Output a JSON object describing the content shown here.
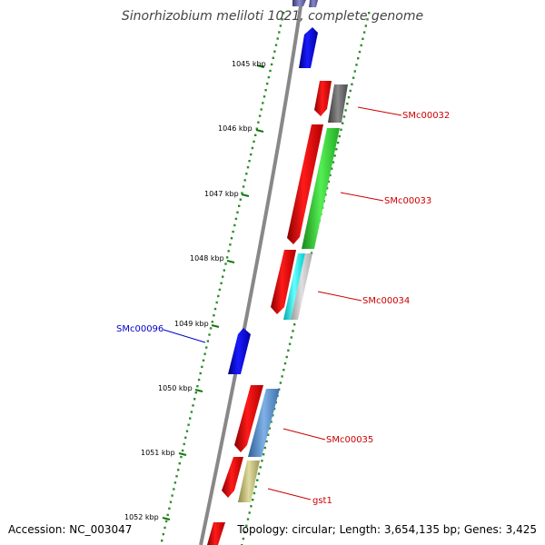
{
  "title": "Sinorhizobium meliloti 1021, complete genome",
  "footer": {
    "accession": "Accession: NC_003047",
    "topology": "Topology: circular; Length: 3,654,135 bp; Genes: 3,425"
  },
  "ticks": [
    "1045 kbp",
    "1046 kbp",
    "1047 kbp",
    "1048 kbp",
    "1049 kbp",
    "1050 kbp",
    "1051 kbp",
    "1052 kbp"
  ],
  "gene_labels": {
    "smc00032": "SMc00032",
    "smc00033": "SMc00033",
    "smc00034": "SMc00034",
    "smc00096": "SMc00096",
    "smc00035": "SMc00035",
    "gst1": "gst1"
  },
  "colors": {
    "backbone": "#8a8a8a",
    "tick_dots": "#2e8b2e",
    "forward_strand_arrow": "#ee0000",
    "reverse_strand_arrow": "#0000dd",
    "cog_gray": "#666666",
    "cog_green": "#33cc33",
    "cog_cyan": "#00e5e5",
    "cog_lightgray": "#bbbbbb",
    "cog_steelblue": "#4f86c6",
    "cog_khaki": "#bdb76b",
    "label_red": "#cc0000",
    "label_blue": "#0000cc"
  }
}
